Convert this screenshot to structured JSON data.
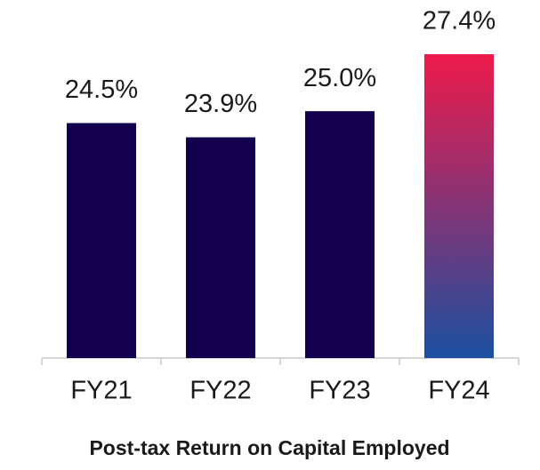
{
  "chart_data": {
    "type": "bar",
    "title": "Post-tax Return on Capital Employed",
    "categories": [
      "FY21",
      "FY22",
      "FY23",
      "FY24"
    ],
    "values": [
      24.5,
      23.9,
      25.0,
      27.4
    ],
    "value_labels": [
      "24.5%",
      "23.9%",
      "25.0%",
      "27.4%"
    ],
    "color": "#12004e",
    "highlight": {
      "index": 3,
      "gradient": [
        "#ee1a4b",
        "#1b4fa0"
      ]
    },
    "ylim": [
      14.6,
      28
    ]
  }
}
